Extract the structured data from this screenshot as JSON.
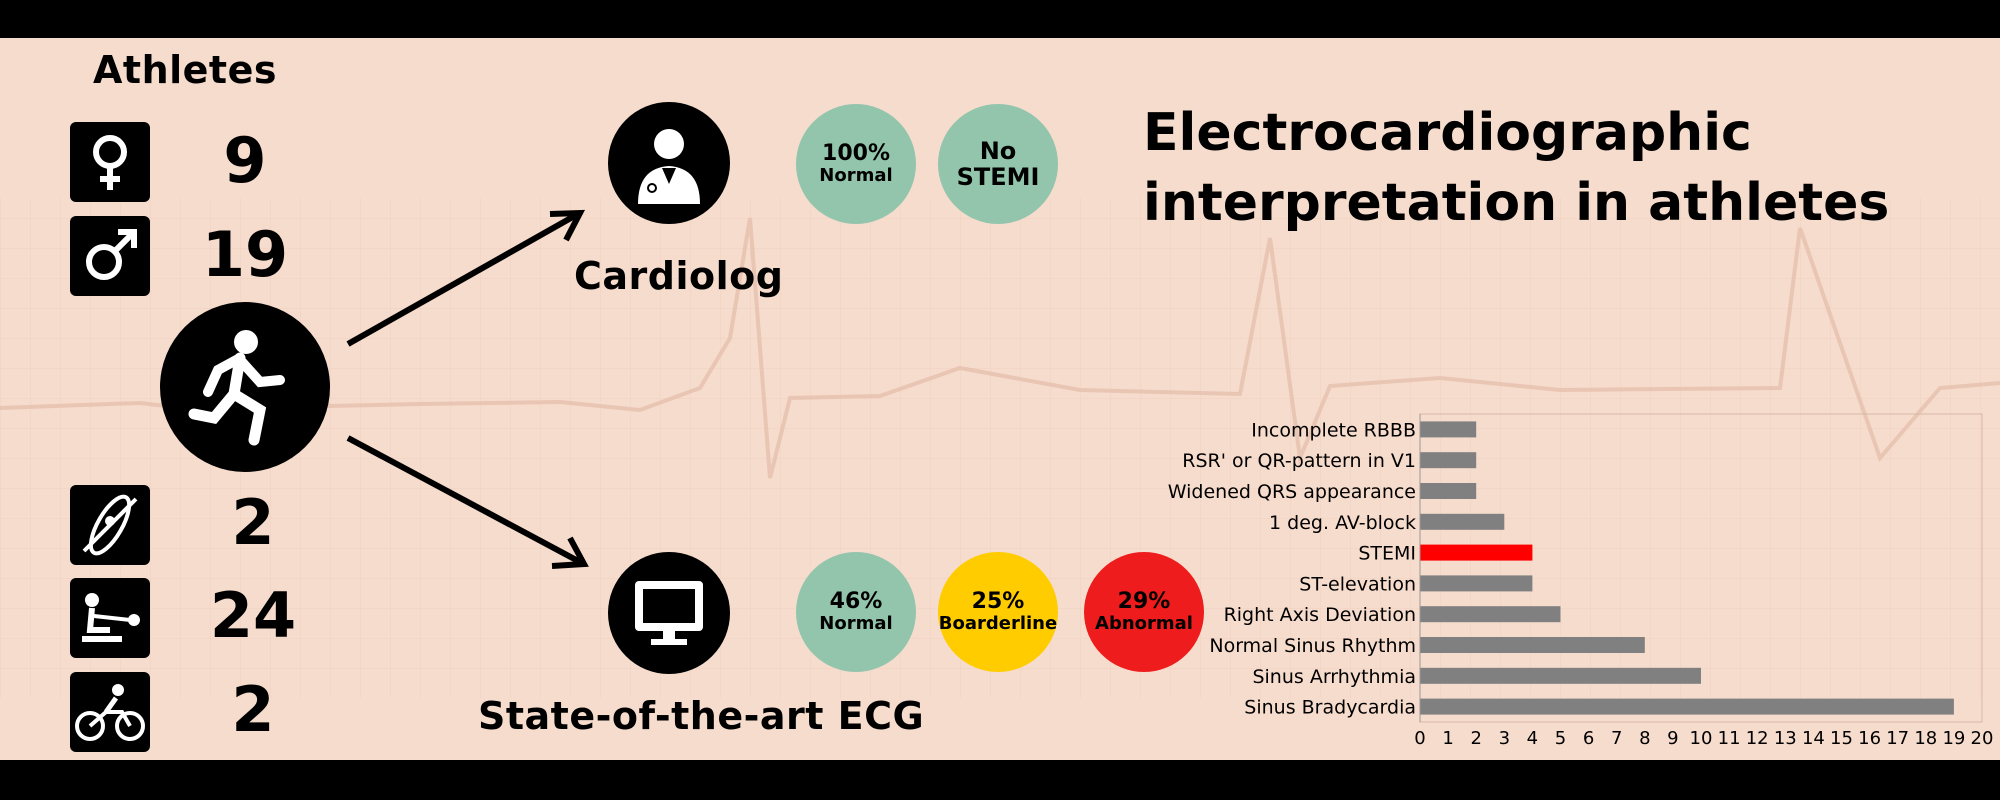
{
  "sidebar": {
    "heading": "Athletes",
    "counts": [
      {
        "icon": "female-icon",
        "value": "9"
      },
      {
        "icon": "male-icon",
        "value": "19"
      },
      {
        "icon": "kayak-icon",
        "value": "2"
      },
      {
        "icon": "rowing-icon",
        "value": "24"
      },
      {
        "icon": "cycling-icon",
        "value": "2"
      }
    ],
    "runner_icon": "runner-icon"
  },
  "title": {
    "line1": "Electrocardiographic",
    "line2": "interpretation in athletes"
  },
  "cardiolog": {
    "label": "Cardiolog",
    "icon": "doctor-icon",
    "results": [
      {
        "value": "100%",
        "label": "Normal",
        "color": "#93c5ad"
      },
      {
        "value": "No",
        "label": "STEMI",
        "color": "#93c5ad"
      }
    ]
  },
  "ecg": {
    "label": "State-of-the-art ECG",
    "icon": "monitor-icon",
    "results": [
      {
        "value": "46%",
        "label": "Normal",
        "color": "#93c5ad"
      },
      {
        "value": "25%",
        "label": "Boarderline",
        "color": "#ffcc00"
      },
      {
        "value": "29%",
        "label": "Abnormal",
        "color": "#ee1c1c"
      }
    ]
  },
  "colors": {
    "background": "#f6dccd",
    "bar_default": "#808080",
    "bar_highlight": "#ff0000"
  },
  "chart_data": {
    "type": "bar",
    "orientation": "horizontal",
    "categories": [
      "Incomplete RBBB",
      "RSR' or QR-pattern in V1",
      "Widened QRS appearance",
      "1 deg. AV-block",
      "STEMI",
      "ST-elevation",
      "Right Axis Deviation",
      "Normal Sinus Rhythm",
      "Sinus Arrhythmia",
      "Sinus Bradycardia"
    ],
    "values": [
      2,
      2,
      2,
      3,
      4,
      4,
      5,
      8,
      10,
      19
    ],
    "highlight": "STEMI",
    "xlim": [
      0,
      20
    ],
    "xticks": [
      "0",
      "1",
      "2",
      "3",
      "4",
      "5",
      "6",
      "7",
      "8",
      "9",
      "10",
      "11",
      "12",
      "13",
      "14",
      "15",
      "16",
      "17",
      "18",
      "19",
      "20"
    ],
    "grid": false
  }
}
